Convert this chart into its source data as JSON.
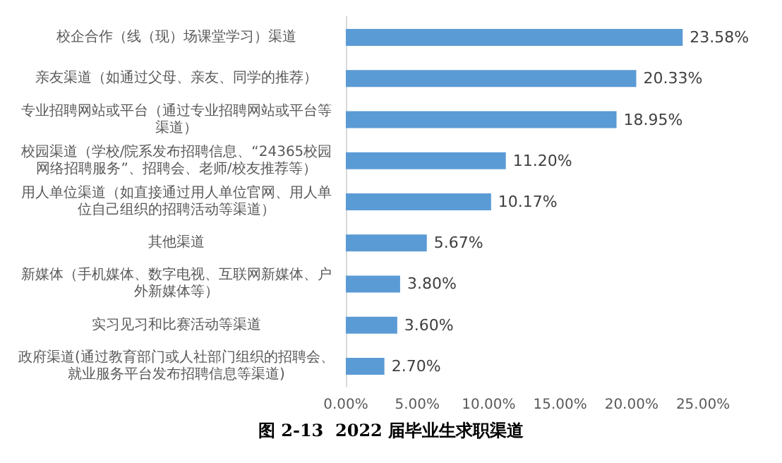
{
  "chart_data": {
    "type": "bar",
    "orientation": "horizontal",
    "title": "图 2-13  2022 届毕业生求职渠道",
    "categories": [
      "校企合作（线（现）场课堂学习）渠道",
      "亲友渠道（如通过父母、亲友、同学的推荐）",
      "专业招聘网站或平台（通过专业招聘网站或平台等渠道）",
      "校园渠道（学校/院系发布招聘信息、“24365校园网络招聘服务”、招聘会、老师/校友推荐等）",
      "用人单位渠道（如直接通过用人单位官网、用人单位自己组织的招聘活动等渠道）",
      "其他渠道",
      "新媒体（手机媒体、数字电视、互联网新媒体、户外新媒体等）",
      "实习见习和比赛活动等渠道",
      "政府渠道(通过教育部门或人社部门组织的招聘会、就业服务平台发布招聘信息等渠道)"
    ],
    "values": [
      23.58,
      20.33,
      18.95,
      11.2,
      10.17,
      5.67,
      3.8,
      3.6,
      2.7
    ],
    "value_labels": [
      "23.58%",
      "20.33%",
      "18.95%",
      "11.20%",
      "10.17%",
      "5.67%",
      "3.80%",
      "3.60%",
      "2.70%"
    ],
    "color": "#5b9bd5",
    "xlim": [
      0,
      25
    ],
    "xticks": [
      {
        "value": 0,
        "label": "0.00%"
      },
      {
        "value": 5,
        "label": "5.00%"
      },
      {
        "value": 10,
        "label": "10.00%"
      },
      {
        "value": 15,
        "label": "15.00%"
      },
      {
        "value": 20,
        "label": "20.00%"
      },
      {
        "value": 25,
        "label": "25.00%"
      }
    ],
    "grid": false
  }
}
